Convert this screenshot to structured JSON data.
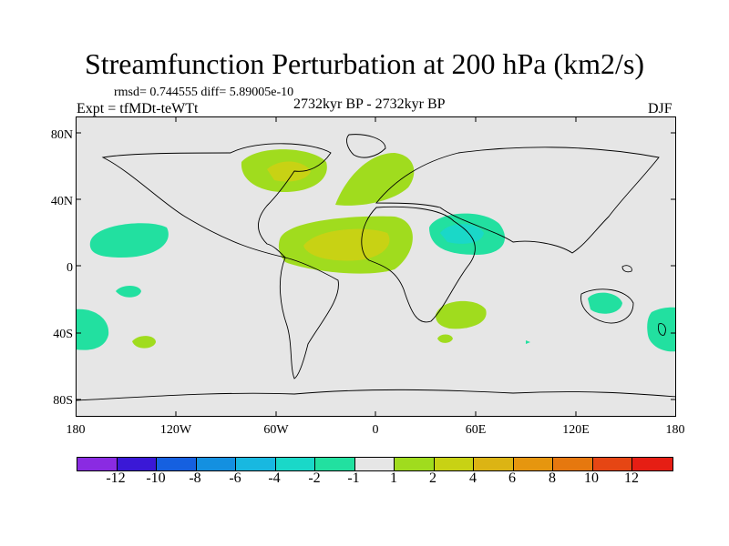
{
  "title": "Streamfunction Perturbation at 200 hPa (km2/s)",
  "stats": "rmsd= 0.744555 diff= 5.89005e-10",
  "expt": "Expt = tfMDt-teWTt",
  "period": "2732kyr BP - 2732kyr BP",
  "season": "DJF",
  "map": {
    "lat_ticks": [
      "80N",
      "40N",
      "0",
      "40S",
      "80S"
    ],
    "lon_ticks": [
      "180",
      "120W",
      "60W",
      "0",
      "60E",
      "120E",
      "180"
    ]
  },
  "colorbar": {
    "colors": [
      "#8a2be2",
      "#3a18d6",
      "#1560e0",
      "#1490e0",
      "#18b8e0",
      "#1ad8c8",
      "#22e0a0",
      "#e6e6e6",
      "#a0dc1e",
      "#c8d214",
      "#dcb414",
      "#e6960f",
      "#e6780f",
      "#e64614",
      "#e61e14"
    ],
    "labels": [
      "-12",
      "-10",
      "-8",
      "-6",
      "-4",
      "-2",
      "-1",
      "1",
      "2",
      "4",
      "6",
      "8",
      "10",
      "12"
    ]
  }
}
